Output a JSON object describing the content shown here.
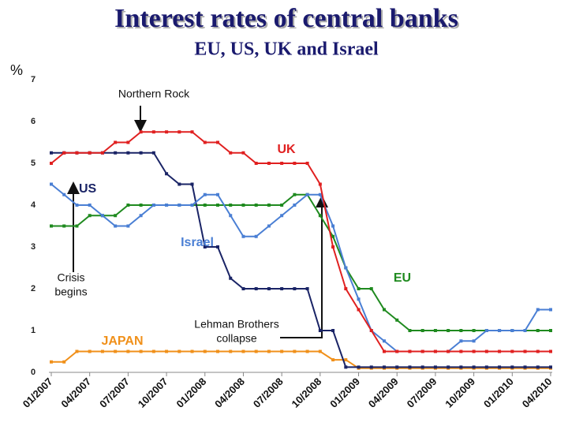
{
  "chart_data": {
    "type": "line",
    "title": "Interest rates of central banks",
    "subtitle": "EU, US, UK and Israel",
    "y_label": "%",
    "categories": [
      "01/2007",
      null,
      null,
      "04/2007",
      null,
      null,
      "07/2007",
      null,
      null,
      "10/2007",
      null,
      null,
      "01/2008",
      null,
      null,
      "04/2008",
      null,
      null,
      "07/2008",
      null,
      null,
      "10/2008",
      null,
      null,
      "01/2009",
      null,
      null,
      "04/2009",
      null,
      null,
      "07/2009",
      null,
      null,
      "10/2009",
      null,
      null,
      "01/2010",
      null,
      null,
      "04/2010"
    ],
    "ylim": [
      0,
      7
    ],
    "yticks": [
      0,
      1,
      2,
      3,
      4,
      5,
      6,
      7
    ],
    "series": [
      {
        "name": "UK",
        "color": "#e02020",
        "values": [
          5.0,
          5.25,
          5.25,
          5.25,
          5.25,
          5.5,
          5.5,
          5.75,
          5.75,
          5.75,
          5.75,
          5.75,
          5.5,
          5.5,
          5.25,
          5.25,
          5.0,
          5.0,
          5.0,
          5.0,
          5.0,
          4.5,
          3.0,
          2.0,
          1.5,
          1.0,
          0.5,
          0.5,
          0.5,
          0.5,
          0.5,
          0.5,
          0.5,
          0.5,
          0.5,
          0.5,
          0.5,
          0.5,
          0.5,
          0.5
        ]
      },
      {
        "name": "US",
        "color": "#1a2466",
        "values": [
          5.25,
          5.25,
          5.25,
          5.25,
          5.25,
          5.25,
          5.25,
          5.25,
          5.25,
          4.75,
          4.5,
          4.5,
          3.0,
          3.0,
          2.25,
          2.0,
          2.0,
          2.0,
          2.0,
          2.0,
          2.0,
          1.0,
          1.0,
          0.125,
          0.125,
          0.125,
          0.125,
          0.125,
          0.125,
          0.125,
          0.125,
          0.125,
          0.125,
          0.125,
          0.125,
          0.125,
          0.125,
          0.125,
          0.125,
          0.125
        ]
      },
      {
        "name": "Israel",
        "color": "#4a7fd4",
        "values": [
          4.5,
          4.25,
          4.0,
          4.0,
          3.75,
          3.5,
          3.5,
          3.75,
          4.0,
          4.0,
          4.0,
          4.0,
          4.25,
          4.25,
          3.75,
          3.25,
          3.25,
          3.5,
          3.75,
          4.0,
          4.25,
          4.25,
          3.5,
          2.5,
          1.75,
          1.0,
          0.75,
          0.5,
          0.5,
          0.5,
          0.5,
          0.5,
          0.75,
          0.75,
          1.0,
          1.0,
          1.0,
          1.0,
          1.5,
          1.5
        ]
      },
      {
        "name": "EU",
        "color": "#1f8a1f",
        "values": [
          3.5,
          3.5,
          3.5,
          3.75,
          3.75,
          3.75,
          4.0,
          4.0,
          4.0,
          4.0,
          4.0,
          4.0,
          4.0,
          4.0,
          4.0,
          4.0,
          4.0,
          4.0,
          4.0,
          4.25,
          4.25,
          3.75,
          3.25,
          2.5,
          2.0,
          2.0,
          1.5,
          1.25,
          1.0,
          1.0,
          1.0,
          1.0,
          1.0,
          1.0,
          1.0,
          1.0,
          1.0,
          1.0,
          1.0,
          1.0
        ]
      },
      {
        "name": "JAPAN",
        "color": "#f0901a",
        "values": [
          0.25,
          0.25,
          0.5,
          0.5,
          0.5,
          0.5,
          0.5,
          0.5,
          0.5,
          0.5,
          0.5,
          0.5,
          0.5,
          0.5,
          0.5,
          0.5,
          0.5,
          0.5,
          0.5,
          0.5,
          0.5,
          0.5,
          0.3,
          0.3,
          0.1,
          0.1,
          0.1,
          0.1,
          0.1,
          0.1,
          0.1,
          0.1,
          0.1,
          0.1,
          0.1,
          0.1,
          0.1,
          0.1,
          0.1,
          0.1
        ]
      }
    ],
    "annotations": [
      {
        "lines": [
          "Northern Rock"
        ]
      },
      {
        "lines": [
          "Crisis",
          "begins"
        ]
      },
      {
        "lines": [
          "Lehman Brothers",
          "collapse"
        ]
      }
    ]
  }
}
